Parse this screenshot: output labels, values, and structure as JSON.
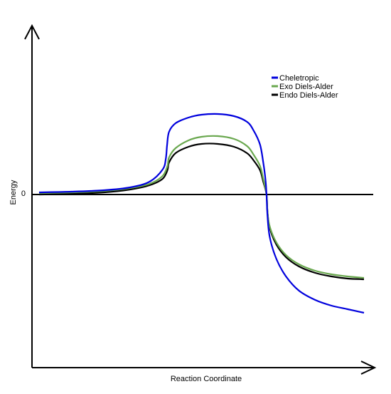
{
  "chart_data": {
    "type": "line",
    "xlabel": "Reaction Coordinate",
    "ylabel": "Energy",
    "yticks": [
      "0"
    ],
    "zero_line": true,
    "legend_position": "top-right",
    "series": [
      {
        "name": "Cheletropic",
        "color": "#0000dd",
        "points": [
          [
            0.0,
            0.03
          ],
          [
            0.1,
            0.04
          ],
          [
            0.2,
            0.06
          ],
          [
            0.28,
            0.1
          ],
          [
            0.34,
            0.18
          ],
          [
            0.38,
            0.35
          ],
          [
            0.39,
            0.5
          ],
          [
            0.394,
            0.7
          ],
          [
            0.4,
            0.88
          ],
          [
            0.42,
            1.0
          ],
          [
            0.46,
            1.08
          ],
          [
            0.5,
            1.12
          ],
          [
            0.55,
            1.13
          ],
          [
            0.6,
            1.1
          ],
          [
            0.64,
            1.02
          ],
          [
            0.66,
            0.9
          ],
          [
            0.68,
            0.7
          ],
          [
            0.69,
            0.45
          ],
          [
            0.697,
            0.2
          ],
          [
            0.7,
            0.0
          ],
          [
            0.703,
            -0.3
          ],
          [
            0.71,
            -0.6
          ],
          [
            0.73,
            -0.9
          ],
          [
            0.76,
            -1.15
          ],
          [
            0.8,
            -1.35
          ],
          [
            0.85,
            -1.48
          ],
          [
            0.9,
            -1.56
          ],
          [
            0.95,
            -1.61
          ],
          [
            1.0,
            -1.66
          ]
        ]
      },
      {
        "name": "Exo Diels-Alder",
        "color": "#6aa84f",
        "points": [
          [
            0.0,
            0.02
          ],
          [
            0.1,
            0.03
          ],
          [
            0.2,
            0.05
          ],
          [
            0.28,
            0.09
          ],
          [
            0.34,
            0.15
          ],
          [
            0.38,
            0.26
          ],
          [
            0.395,
            0.4
          ],
          [
            0.4,
            0.52
          ],
          [
            0.42,
            0.65
          ],
          [
            0.46,
            0.76
          ],
          [
            0.5,
            0.81
          ],
          [
            0.55,
            0.82
          ],
          [
            0.6,
            0.78
          ],
          [
            0.64,
            0.68
          ],
          [
            0.66,
            0.56
          ],
          [
            0.68,
            0.4
          ],
          [
            0.69,
            0.22
          ],
          [
            0.7,
            0.0
          ],
          [
            0.703,
            -0.25
          ],
          [
            0.71,
            -0.45
          ],
          [
            0.73,
            -0.67
          ],
          [
            0.76,
            -0.85
          ],
          [
            0.8,
            -0.98
          ],
          [
            0.85,
            -1.07
          ],
          [
            0.9,
            -1.12
          ],
          [
            0.95,
            -1.15
          ],
          [
            1.0,
            -1.17
          ]
        ]
      },
      {
        "name": "Endo Diels-Alder",
        "color": "#000000",
        "points": [
          [
            0.0,
            0.0
          ],
          [
            0.1,
            0.01
          ],
          [
            0.2,
            0.03
          ],
          [
            0.28,
            0.07
          ],
          [
            0.34,
            0.13
          ],
          [
            0.38,
            0.22
          ],
          [
            0.395,
            0.34
          ],
          [
            0.4,
            0.45
          ],
          [
            0.42,
            0.58
          ],
          [
            0.46,
            0.67
          ],
          [
            0.5,
            0.71
          ],
          [
            0.55,
            0.71
          ],
          [
            0.6,
            0.67
          ],
          [
            0.64,
            0.58
          ],
          [
            0.66,
            0.48
          ],
          [
            0.68,
            0.34
          ],
          [
            0.69,
            0.18
          ],
          [
            0.7,
            0.0
          ],
          [
            0.703,
            -0.25
          ],
          [
            0.71,
            -0.47
          ],
          [
            0.73,
            -0.7
          ],
          [
            0.76,
            -0.88
          ],
          [
            0.8,
            -1.01
          ],
          [
            0.85,
            -1.1
          ],
          [
            0.9,
            -1.15
          ],
          [
            0.95,
            -1.18
          ],
          [
            1.0,
            -1.19
          ]
        ]
      }
    ]
  }
}
